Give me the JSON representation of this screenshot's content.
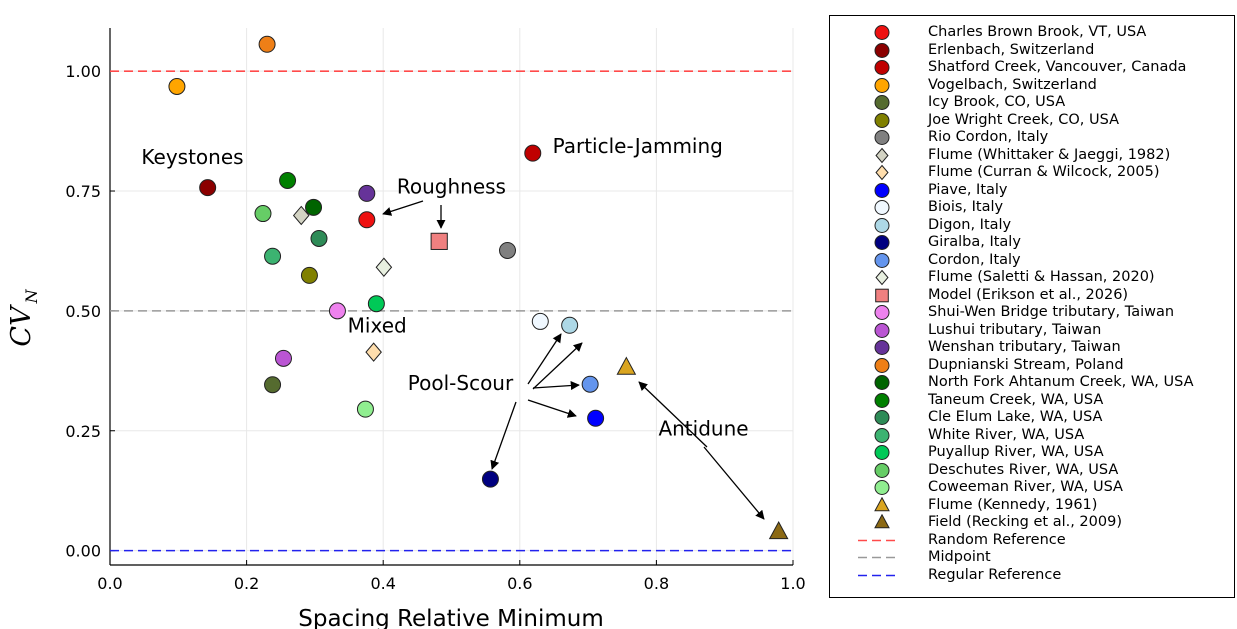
{
  "chart_data": {
    "type": "scatter",
    "title": "",
    "xlabel": "Spacing Relative Minimum",
    "ylabel_main": "CV",
    "ylabel_sub": "N",
    "xlim": [
      0.0,
      1.0
    ],
    "ylim": [
      -0.03,
      1.09
    ],
    "xticks": [
      0.0,
      0.2,
      0.4,
      0.6,
      0.8,
      1.0
    ],
    "xtick_labels": [
      "0.0",
      "0.2",
      "0.4",
      "0.6",
      "0.8",
      "1.0"
    ],
    "yticks": [
      0.0,
      0.25,
      0.5,
      0.75,
      1.0
    ],
    "ytick_labels": [
      "0.00",
      "0.25",
      "0.50",
      "0.75",
      "1.00"
    ],
    "grid": true,
    "legend_position": "outside-right",
    "series": [
      {
        "name": "Charles Brown Brook, VT, USA",
        "marker": "circle",
        "color": "#ee1111",
        "x": [
          0.376
        ],
        "y": [
          0.69
        ]
      },
      {
        "name": "Erlenbach, Switzerland",
        "marker": "circle",
        "color": "#8b0000",
        "x": [
          0.143
        ],
        "y": [
          0.757
        ]
      },
      {
        "name": "Shatford Creek, Vancouver, Canada",
        "marker": "circle",
        "color": "#c00000",
        "x": [
          0.619
        ],
        "y": [
          0.829
        ]
      },
      {
        "name": "Vogelbach, Switzerland",
        "marker": "circle",
        "color": "#ffa500",
        "x": [
          0.098
        ],
        "y": [
          0.968
        ]
      },
      {
        "name": "Icy Brook, CO, USA",
        "marker": "circle",
        "color": "#556b2f",
        "x": [
          0.238
        ],
        "y": [
          0.346
        ]
      },
      {
        "name": "Joe Wright Creek, CO, USA",
        "marker": "circle",
        "color": "#808000",
        "x": [
          0.292
        ],
        "y": [
          0.574
        ]
      },
      {
        "name": "Rio Cordon, Italy",
        "marker": "circle",
        "color": "#808080",
        "x": [
          0.582
        ],
        "y": [
          0.626
        ]
      },
      {
        "name": "Flume (Whittaker & Jaeggi, 1982)",
        "marker": "diamond",
        "color": "#d3d3c3",
        "x": [
          0.28
        ],
        "y": [
          0.699
        ]
      },
      {
        "name": "Flume (Curran & Wilcock, 2005)",
        "marker": "diamond",
        "color": "#ffdead",
        "x": [
          0.386
        ],
        "y": [
          0.414
        ]
      },
      {
        "name": "Piave, Italy",
        "marker": "circle",
        "color": "#0000ff",
        "x": [
          0.711
        ],
        "y": [
          0.276
        ]
      },
      {
        "name": "Biois, Italy",
        "marker": "circle",
        "color": "#f0f8ff",
        "x": [
          0.63
        ],
        "y": [
          0.478
        ]
      },
      {
        "name": "Digon, Italy",
        "marker": "circle",
        "color": "#add8e6",
        "x": [
          0.673
        ],
        "y": [
          0.47
        ]
      },
      {
        "name": "Giralba, Italy",
        "marker": "circle",
        "color": "#000080",
        "x": [
          0.557
        ],
        "y": [
          0.149
        ]
      },
      {
        "name": "Cordon, Italy",
        "marker": "circle",
        "color": "#6495ed",
        "x": [
          0.703
        ],
        "y": [
          0.347
        ]
      },
      {
        "name": "Flume (Saletti & Hassan, 2020)",
        "marker": "diamond",
        "color": "#e8f0e0",
        "x": [
          0.401
        ],
        "y": [
          0.591
        ]
      },
      {
        "name": "Model (Erikson et al., 2026)",
        "marker": "square",
        "color": "#f08080",
        "x": [
          0.482
        ],
        "y": [
          0.645
        ]
      },
      {
        "name": "Shui-Wen Bridge tributary, Taiwan",
        "marker": "circle",
        "color": "#ee82ee",
        "x": [
          0.333
        ],
        "y": [
          0.5
        ]
      },
      {
        "name": "Lushui tributary, Taiwan",
        "marker": "circle",
        "color": "#ba55d3",
        "x": [
          0.254
        ],
        "y": [
          0.401
        ]
      },
      {
        "name": "Wenshan tributary, Taiwan",
        "marker": "circle",
        "color": "#663399",
        "x": [
          0.376
        ],
        "y": [
          0.745
        ]
      },
      {
        "name": "Dupnianski Stream, Poland",
        "marker": "circle",
        "color": "#ee7f17",
        "x": [
          0.23
        ],
        "y": [
          1.056
        ]
      },
      {
        "name": "North Fork Ahtanum Creek, WA, USA",
        "marker": "circle",
        "color": "#006400",
        "x": [
          0.298
        ],
        "y": [
          0.716
        ]
      },
      {
        "name": "Taneum Creek, WA, USA",
        "marker": "circle",
        "color": "#008000",
        "x": [
          0.26
        ],
        "y": [
          0.772
        ]
      },
      {
        "name": "Cle Elum Lake, WA, USA",
        "marker": "circle",
        "color": "#2e8b57",
        "x": [
          0.306
        ],
        "y": [
          0.651
        ]
      },
      {
        "name": "White River, WA, USA",
        "marker": "circle",
        "color": "#3cb371",
        "x": [
          0.238
        ],
        "y": [
          0.614
        ]
      },
      {
        "name": "Puyallup River, WA, USA",
        "marker": "circle",
        "color": "#00c957",
        "x": [
          0.39
        ],
        "y": [
          0.515
        ]
      },
      {
        "name": "Deschutes River, WA, USA",
        "marker": "circle",
        "color": "#66cd66",
        "x": [
          0.224
        ],
        "y": [
          0.703
        ]
      },
      {
        "name": "Coweeman River, WA, USA",
        "marker": "circle",
        "color": "#90ee90",
        "x": [
          0.374
        ],
        "y": [
          0.295
        ]
      },
      {
        "name": "Flume (Kennedy, 1961)",
        "marker": "triangle",
        "color": "#daa520",
        "x": [
          0.756
        ],
        "y": [
          0.382
        ]
      },
      {
        "name": "Field (Recking et al., 2009)",
        "marker": "triangle",
        "color": "#8b6914",
        "x": [
          0.979
        ],
        "y": [
          0.039
        ]
      }
    ],
    "reference_lines": [
      {
        "name": "Random Reference",
        "y": 1.0,
        "color": "#ff4a4a",
        "style": "dashed"
      },
      {
        "name": "Midpoint",
        "y": 0.5,
        "color": "#999999",
        "style": "dashed"
      },
      {
        "name": "Regular Reference",
        "y": 0.0,
        "color": "#2222ee",
        "style": "dashed"
      }
    ],
    "annotations": [
      {
        "text": "Keystones",
        "x": 0.046,
        "y": 0.806
      },
      {
        "text": "Particle-Jamming",
        "x": 0.648,
        "y": 0.829
      },
      {
        "text": "Roughness",
        "x": 0.42,
        "y": 0.745
      },
      {
        "text": "Mixed",
        "x": 0.348,
        "y": 0.455
      },
      {
        "text": "Pool-Scour",
        "x": 0.436,
        "y": 0.335
      },
      {
        "text": "Antidune",
        "x": 0.803,
        "y": 0.24
      }
    ],
    "arrows": [
      {
        "from": [
          0.408,
          0.71
        ],
        "to": [
          0.404,
          0.699
        ]
      },
      {
        "from": [
          0.482,
          0.72
        ],
        "to": [
          0.482,
          0.675
        ]
      },
      {
        "from": [
          0.618,
          0.34
        ],
        "to": [
          0.618,
          0.34
        ]
      }
    ]
  }
}
